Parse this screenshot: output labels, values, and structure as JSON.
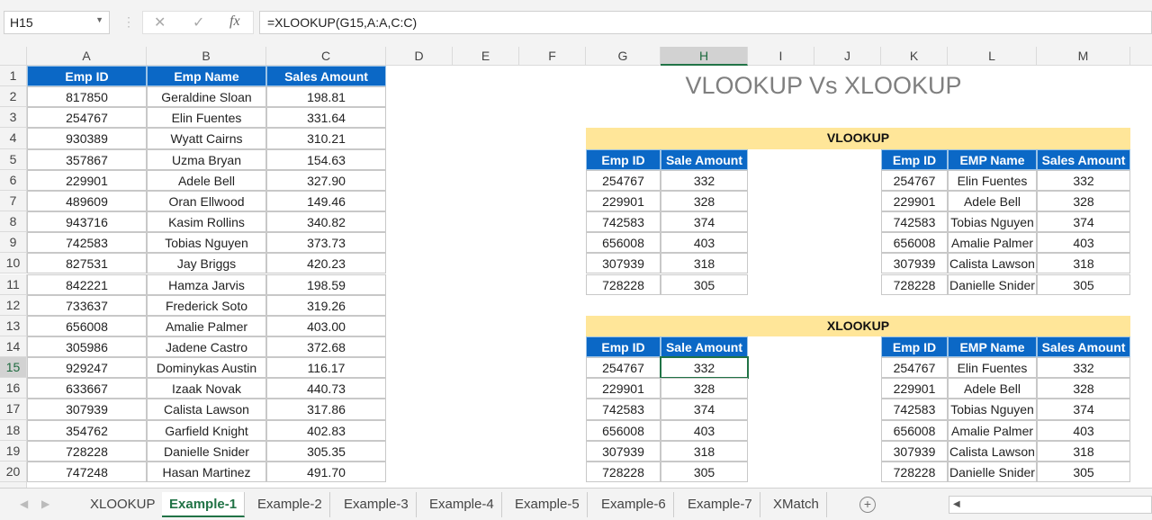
{
  "formula_bar": {
    "name_box": "H15",
    "cancel_icon": "✕",
    "enter_icon": "✓",
    "fx_label": "fx",
    "formula": "=XLOOKUP(G15,A:A,C:C)"
  },
  "columns": [
    "A",
    "B",
    "C",
    "D",
    "E",
    "F",
    "G",
    "H",
    "I",
    "J",
    "K",
    "L",
    "M"
  ],
  "selected_cell": "H15",
  "title": "VLOOKUP Vs XLOOKUP",
  "main_table": {
    "headers": [
      "Emp ID",
      "Emp Name",
      "Sales Amount"
    ],
    "rows": [
      [
        "817850",
        "Geraldine Sloan",
        "198.81"
      ],
      [
        "254767",
        "Elin Fuentes",
        "331.64"
      ],
      [
        "930389",
        "Wyatt Cairns",
        "310.21"
      ],
      [
        "357867",
        "Uzma Bryan",
        "154.63"
      ],
      [
        "229901",
        "Adele Bell",
        "327.90"
      ],
      [
        "489609",
        "Oran Ellwood",
        "149.46"
      ],
      [
        "943716",
        "Kasim Rollins",
        "340.82"
      ],
      [
        "742583",
        "Tobias Nguyen",
        "373.73"
      ],
      [
        "827531",
        "Jay Briggs",
        "420.23"
      ],
      [
        "842221",
        "Hamza Jarvis",
        "198.59"
      ],
      [
        "733637",
        "Frederick Soto",
        "319.26"
      ],
      [
        "656008",
        "Amalie Palmer",
        "403.00"
      ],
      [
        "305986",
        "Jadene Castro",
        "372.68"
      ],
      [
        "929247",
        "Dominykas Austin",
        "116.17"
      ],
      [
        "633667",
        "Izaak Novak",
        "440.73"
      ],
      [
        "307939",
        "Calista Lawson",
        "317.86"
      ],
      [
        "354762",
        "Garfield Knight",
        "402.83"
      ],
      [
        "728228",
        "Danielle Snider",
        "305.35"
      ],
      [
        "747248",
        "Hasan Martinez",
        "491.70"
      ]
    ]
  },
  "vlookup": {
    "label": "VLOOKUP",
    "left": {
      "headers": [
        "Emp ID",
        "Sale Amount"
      ],
      "rows": [
        [
          "254767",
          "332"
        ],
        [
          "229901",
          "328"
        ],
        [
          "742583",
          "374"
        ],
        [
          "656008",
          "403"
        ],
        [
          "307939",
          "318"
        ],
        [
          "728228",
          "305"
        ]
      ]
    },
    "right": {
      "headers": [
        "Emp ID",
        "EMP Name",
        "Sales Amount"
      ],
      "rows": [
        [
          "254767",
          "Elin Fuentes",
          "332"
        ],
        [
          "229901",
          "Adele Bell",
          "328"
        ],
        [
          "742583",
          "Tobias Nguyen",
          "374"
        ],
        [
          "656008",
          "Amalie Palmer",
          "403"
        ],
        [
          "307939",
          "Calista Lawson",
          "318"
        ],
        [
          "728228",
          "Danielle Snider",
          "305"
        ]
      ]
    }
  },
  "xlookup": {
    "label": "XLOOKUP",
    "left": {
      "headers": [
        "Emp ID",
        "Sale Amount"
      ],
      "rows": [
        [
          "254767",
          "332"
        ],
        [
          "229901",
          "328"
        ],
        [
          "742583",
          "374"
        ],
        [
          "656008",
          "403"
        ],
        [
          "307939",
          "318"
        ],
        [
          "728228",
          "305"
        ]
      ]
    },
    "right": {
      "headers": [
        "Emp ID",
        "EMP Name",
        "Sales Amount"
      ],
      "rows": [
        [
          "254767",
          "Elin Fuentes",
          "332"
        ],
        [
          "229901",
          "Adele Bell",
          "328"
        ],
        [
          "742583",
          "Tobias Nguyen",
          "374"
        ],
        [
          "656008",
          "Amalie Palmer",
          "403"
        ],
        [
          "307939",
          "Calista Lawson",
          "318"
        ],
        [
          "728228",
          "Danielle Snider",
          "305"
        ]
      ]
    }
  },
  "sheet_tabs": [
    "XLOOKUP",
    "Example-1",
    "Example-2",
    "Example-3",
    "Example-4",
    "Example-5",
    "Example-6",
    "Example-7",
    "XMatch"
  ],
  "active_tab": "Example-1",
  "colors": {
    "header_blue": "#0b68c6",
    "band_yellow": "#ffe699",
    "excel_green": "#217346"
  }
}
